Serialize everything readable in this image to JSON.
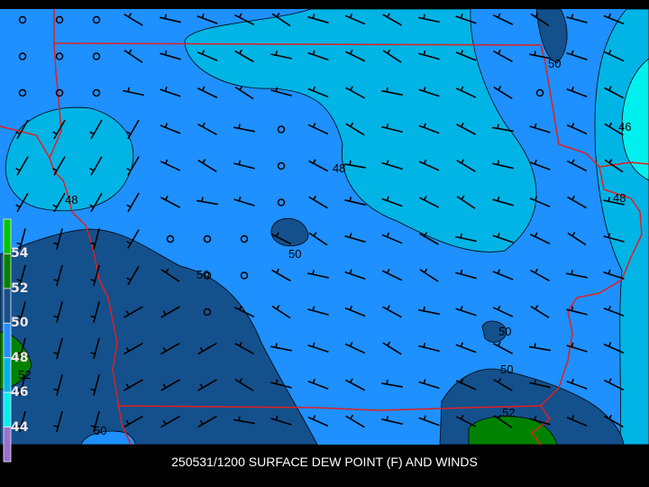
{
  "title": "250531/1200 SURFACE DEW POINT (F) AND WINDS",
  "legend": {
    "labels": [
      "54",
      "52",
      "50",
      "48",
      "46",
      "44"
    ],
    "colors": [
      "#00c800",
      "#008200",
      "#14508c",
      "#1e90ff",
      "#00b4e6",
      "#00f0f0",
      "#9a70d0"
    ]
  },
  "contour_labels": [
    {
      "text": "50"
    },
    {
      "text": "46"
    },
    {
      "text": "48"
    },
    {
      "text": "48"
    },
    {
      "text": "48"
    },
    {
      "text": "50"
    },
    {
      "text": "50"
    },
    {
      "text": "50"
    },
    {
      "text": "50"
    },
    {
      "text": "52"
    },
    {
      "text": "52"
    },
    {
      "text": "50"
    }
  ],
  "colors": {
    "background": "#1e90ff",
    "border": "#e02020",
    "contour": "#000000"
  }
}
